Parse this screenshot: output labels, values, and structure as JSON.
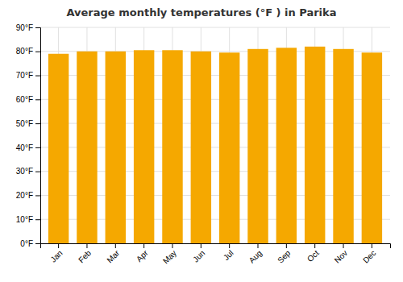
{
  "chart_data": {
    "type": "bar",
    "title": "Average monthly temperatures (°F ) in Parika",
    "categories": [
      "Jan",
      "Feb",
      "Mar",
      "Apr",
      "May",
      "Jun",
      "Jul",
      "Aug",
      "Sep",
      "Oct",
      "Nov",
      "Dec"
    ],
    "values": [
      79,
      80,
      80,
      80.5,
      80.5,
      80,
      79.5,
      81,
      81.5,
      82,
      81,
      79.5
    ],
    "color": "#F5A800",
    "ylim": [
      0,
      90
    ],
    "yticks": [
      {
        "value": 0,
        "label": "0°F"
      },
      {
        "value": 10,
        "label": "10°F"
      },
      {
        "value": 20,
        "label": "20°F"
      },
      {
        "value": 30,
        "label": "30°F"
      },
      {
        "value": 40,
        "label": "40°F"
      },
      {
        "value": 50,
        "label": "50°F"
      },
      {
        "value": 60,
        "label": "60°F"
      },
      {
        "value": 70,
        "label": "70°F"
      },
      {
        "value": 80,
        "label": "80°F"
      },
      {
        "value": 90,
        "label": "90°F"
      }
    ],
    "grid": true
  }
}
